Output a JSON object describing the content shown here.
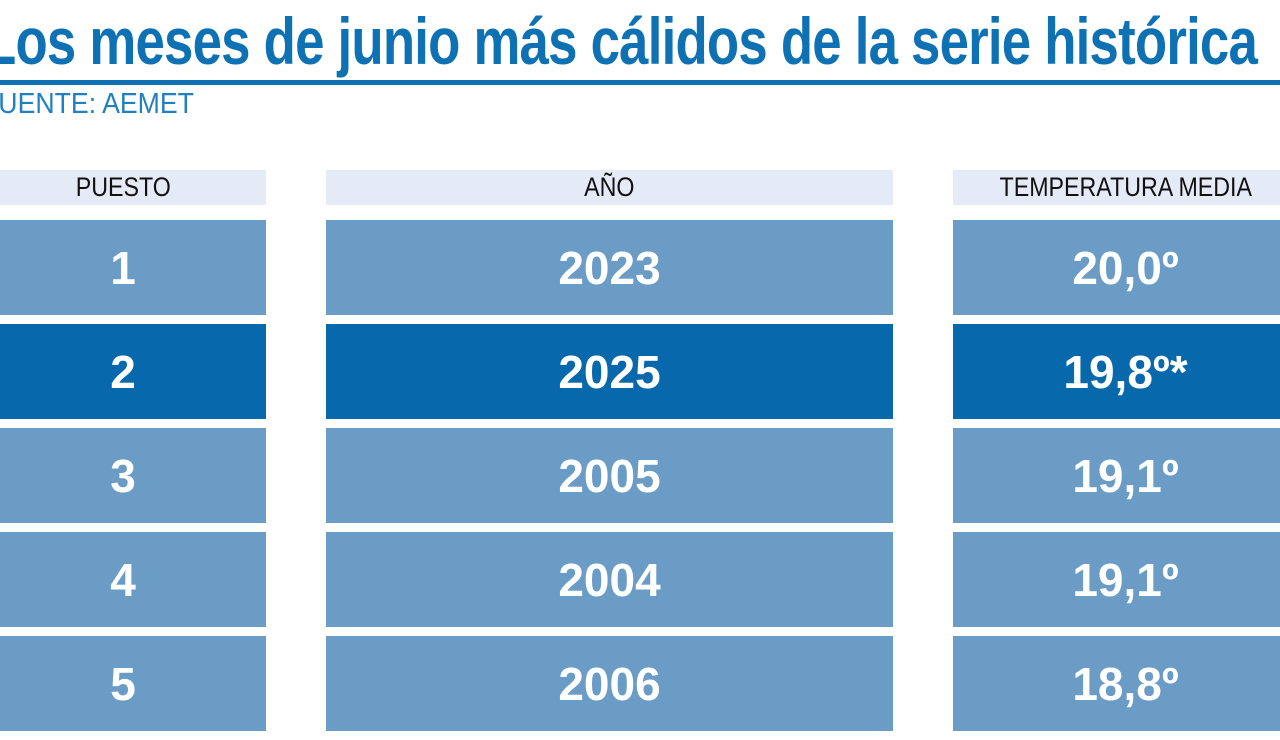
{
  "chart_data": {
    "type": "table",
    "title": "Los meses de junio más cálidos de la serie histórica",
    "source": "FUENTE: AEMET",
    "columns": [
      "PUESTO",
      "AÑO",
      "TEMPERATURA MEDIA"
    ],
    "rows": [
      {
        "puesto": "1",
        "ano": "2023",
        "temperatura": "20,0º",
        "highlighted": false
      },
      {
        "puesto": "2",
        "ano": "2025",
        "temperatura": "19,8º*",
        "highlighted": true
      },
      {
        "puesto": "3",
        "ano": "2005",
        "temperatura": "19,1º",
        "highlighted": false
      },
      {
        "puesto": "4",
        "ano": "2004",
        "temperatura": "19,1º",
        "highlighted": false
      },
      {
        "puesto": "5",
        "ano": "2006",
        "temperatura": "18,8º",
        "highlighted": false
      }
    ],
    "note_marker": "*",
    "layout_hints": {
      "highlight_row_index": 1,
      "cropped_edges": [
        "left",
        "right",
        "bottom"
      ]
    },
    "colors": {
      "accent_blue": "#0d71b4",
      "source_blue": "#2380c0",
      "row_blue": "#6b9cc6",
      "highlight_blue": "#0769ac",
      "header_bg": "#e4ebf6",
      "header_text": "#111111",
      "row_text": "#ffffff"
    }
  }
}
